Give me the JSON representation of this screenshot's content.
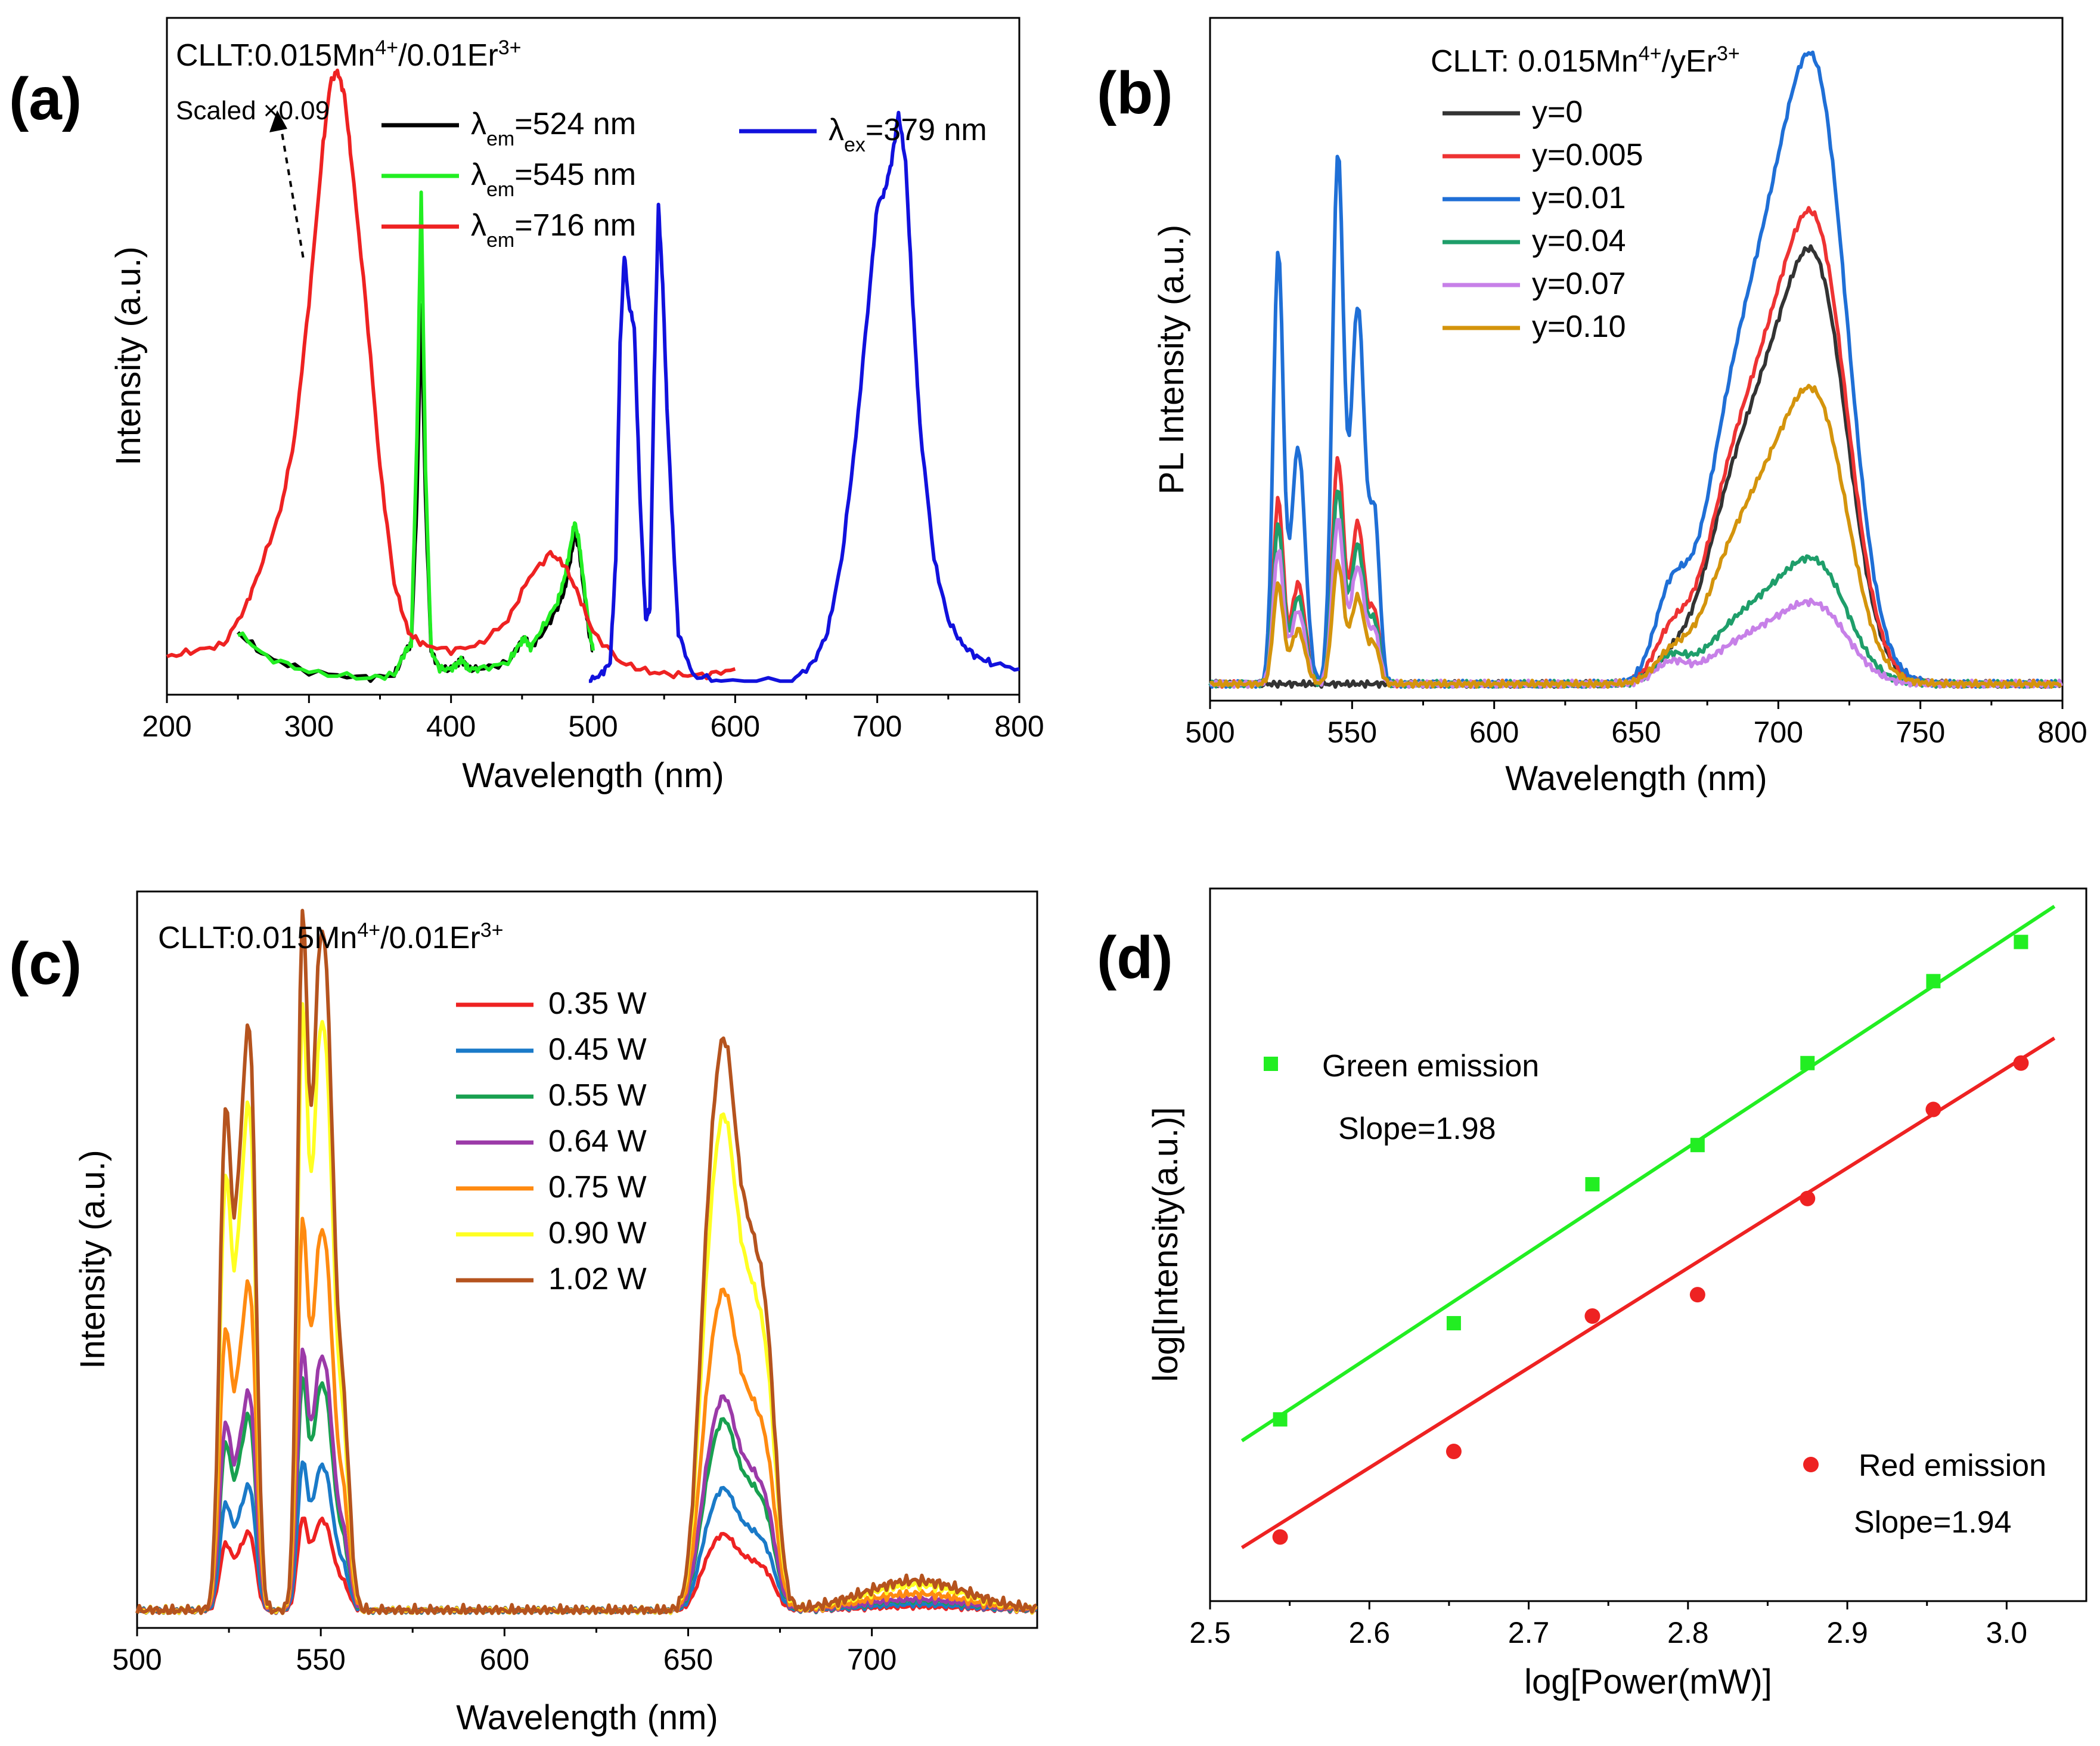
{
  "chart_data": [
    {
      "panel": "(a)",
      "type": "line",
      "annotation": "CLLT:0.015Mn4+/0.01Er3+",
      "scaled_note": "Scaled ×0.09",
      "xlabel": "Wavelength (nm)",
      "ylabel": "Intensity (a.u.)",
      "xlim": [
        200,
        800
      ],
      "ylim": [
        0,
        1.02
      ],
      "xticks": [
        200,
        300,
        400,
        500,
        600,
        700,
        800
      ],
      "series": [
        {
          "name": "λem=524 nm",
          "color": "#000000",
          "x": [
            250,
            270,
            300,
            340,
            360,
            368,
            372,
            376,
            379,
            382,
            386,
            392,
            400,
            405,
            408,
            412,
            420,
            440,
            448,
            452,
            456,
            465,
            475,
            480,
            484,
            487,
            490,
            493,
            497,
            500
          ],
          "y": [
            0.08,
            0.04,
            0.015,
            0.005,
            0.01,
            0.05,
            0.06,
            0.3,
            0.62,
            0.3,
            0.05,
            0.02,
            0.02,
            0.03,
            0.035,
            0.02,
            0.02,
            0.03,
            0.06,
            0.07,
            0.055,
            0.08,
            0.12,
            0.15,
            0.2,
            0.24,
            0.22,
            0.16,
            0.08,
            0.05
          ]
        },
        {
          "name": "λem=545 nm",
          "color": "#22ee22",
          "x": [
            250,
            270,
            300,
            340,
            360,
            368,
            372,
            376,
            379,
            382,
            386,
            392,
            400,
            405,
            408,
            412,
            420,
            440,
            448,
            452,
            456,
            465,
            475,
            480,
            484,
            487,
            490,
            493,
            497,
            500
          ],
          "y": [
            0.08,
            0.04,
            0.015,
            0.005,
            0.01,
            0.05,
            0.06,
            0.4,
            0.8,
            0.35,
            0.05,
            0.02,
            0.02,
            0.03,
            0.035,
            0.02,
            0.02,
            0.03,
            0.06,
            0.07,
            0.055,
            0.09,
            0.13,
            0.17,
            0.22,
            0.26,
            0.23,
            0.17,
            0.09,
            0.05
          ]
        },
        {
          "name": "λem=716 nm",
          "color": "#ee2222",
          "x": [
            200,
            220,
            240,
            255,
            265,
            280,
            290,
            300,
            310,
            315,
            320,
            325,
            330,
            340,
            350,
            360,
            370,
            380,
            400,
            420,
            440,
            455,
            470,
            480,
            490,
            500,
            520,
            540,
            560,
            580,
            600
          ],
          "y": [
            0.04,
            0.05,
            0.06,
            0.12,
            0.18,
            0.28,
            0.4,
            0.62,
            0.88,
            0.98,
            1.0,
            0.96,
            0.85,
            0.62,
            0.35,
            0.16,
            0.08,
            0.06,
            0.05,
            0.06,
            0.1,
            0.17,
            0.21,
            0.19,
            0.14,
            0.08,
            0.03,
            0.015,
            0.01,
            0.01,
            0.02
          ]
        },
        {
          "name": "λex=379 nm",
          "color": "#1111dd",
          "x": [
            497,
            505,
            512,
            516,
            519,
            522,
            525,
            529,
            533,
            537,
            540,
            543,
            546,
            549,
            552,
            556,
            560,
            570,
            590,
            640,
            655,
            665,
            675,
            685,
            695,
            700,
            705,
            710,
            715,
            720,
            725,
            730,
            740,
            750,
            760,
            770,
            780,
            800
          ],
          "y": [
            0.0,
            0.01,
            0.03,
            0.2,
            0.55,
            0.7,
            0.62,
            0.58,
            0.3,
            0.1,
            0.12,
            0.5,
            0.78,
            0.65,
            0.45,
            0.25,
            0.08,
            0.01,
            0.0,
            0.0,
            0.03,
            0.08,
            0.2,
            0.4,
            0.65,
            0.78,
            0.8,
            0.85,
            0.93,
            0.85,
            0.62,
            0.42,
            0.2,
            0.1,
            0.06,
            0.04,
            0.03,
            0.02
          ]
        }
      ]
    },
    {
      "panel": "(b)",
      "type": "line",
      "annotation": "CLLT: 0.015Mn4+/yEr3+",
      "xlabel": "Wavelength (nm)",
      "ylabel": "PL Intensity (a.u.)",
      "xlim": [
        500,
        800
      ],
      "ylim": [
        0,
        1.04
      ],
      "xticks": [
        500,
        550,
        600,
        650,
        700,
        750,
        800
      ],
      "series": [
        {
          "name": "y=0",
          "color": "#333333",
          "g": 0.0,
          "r": 0.69
        },
        {
          "name": "y=0.005",
          "color": "#ee3333",
          "g": 0.37,
          "r": 0.75
        },
        {
          "name": "y=0.01",
          "color": "#1f6fd6",
          "g": 0.87,
          "r": 1.0
        },
        {
          "name": "y=0.04",
          "color": "#1e9e6a",
          "g": 0.32,
          "r": 0.2
        },
        {
          "name": "y=0.07",
          "color": "#c780e8",
          "g": 0.27,
          "r": 0.13
        },
        {
          "name": "y=0.10",
          "color": "#d4940c",
          "g": 0.2,
          "r": 0.47
        }
      ]
    },
    {
      "panel": "(c)",
      "type": "line",
      "annotation": "CLLT:0.015Mn4+/0.01Er3+",
      "xlabel": "Wavelength (nm)",
      "ylabel": "Intensity (a.u.)",
      "xlim": [
        500,
        745
      ],
      "ylim": [
        0,
        1.02
      ],
      "xticks": [
        500,
        550,
        600,
        650,
        700
      ],
      "series": [
        {
          "name": "0.35 W",
          "color": "#ee2222",
          "scale": 0.1
        },
        {
          "name": "0.45 W",
          "color": "#1a7ac8",
          "scale": 0.16
        },
        {
          "name": "0.55 W",
          "color": "#18a050",
          "scale": 0.25
        },
        {
          "name": "0.64 W",
          "color": "#9b3aa8",
          "scale": 0.28
        },
        {
          "name": "0.75 W",
          "color": "#ff8a10",
          "scale": 0.42
        },
        {
          "name": "0.90 W",
          "color": "#ffff22",
          "scale": 0.65
        },
        {
          "name": "1.02 W",
          "color": "#b5531e",
          "scale": 0.75
        }
      ]
    },
    {
      "panel": "(d)",
      "type": "scatter",
      "xlabel": "log[Power(mW)]",
      "ylabel": "log[Intensity(a.u.)]",
      "xlim": [
        2.5,
        3.05
      ],
      "ylim": [
        0,
        1
      ],
      "xticks": [
        2.5,
        2.6,
        2.7,
        2.8,
        2.9,
        3.0
      ],
      "series": [
        {
          "name": "Green emission",
          "color": "#22ee22",
          "marker": "square",
          "slope_label": "Slope=1.98",
          "x": [
            2.544,
            2.653,
            2.74,
            2.806,
            2.875,
            2.954,
            3.009
          ],
          "y": [
            0.255,
            0.39,
            0.585,
            0.64,
            0.755,
            0.87,
            0.925
          ],
          "fit": {
            "x": [
              2.52,
              3.03
            ],
            "y": [
              0.225,
              0.975
            ]
          }
        },
        {
          "name": "Red emission",
          "color": "#ee2222",
          "marker": "circle",
          "slope_label": "Slope=1.94",
          "x": [
            2.544,
            2.653,
            2.74,
            2.806,
            2.875,
            2.954,
            3.009
          ],
          "y": [
            0.09,
            0.21,
            0.4,
            0.43,
            0.565,
            0.69,
            0.755
          ],
          "fit": {
            "x": [
              2.52,
              3.03
            ],
            "y": [
              0.075,
              0.79
            ]
          }
        }
      ]
    }
  ]
}
